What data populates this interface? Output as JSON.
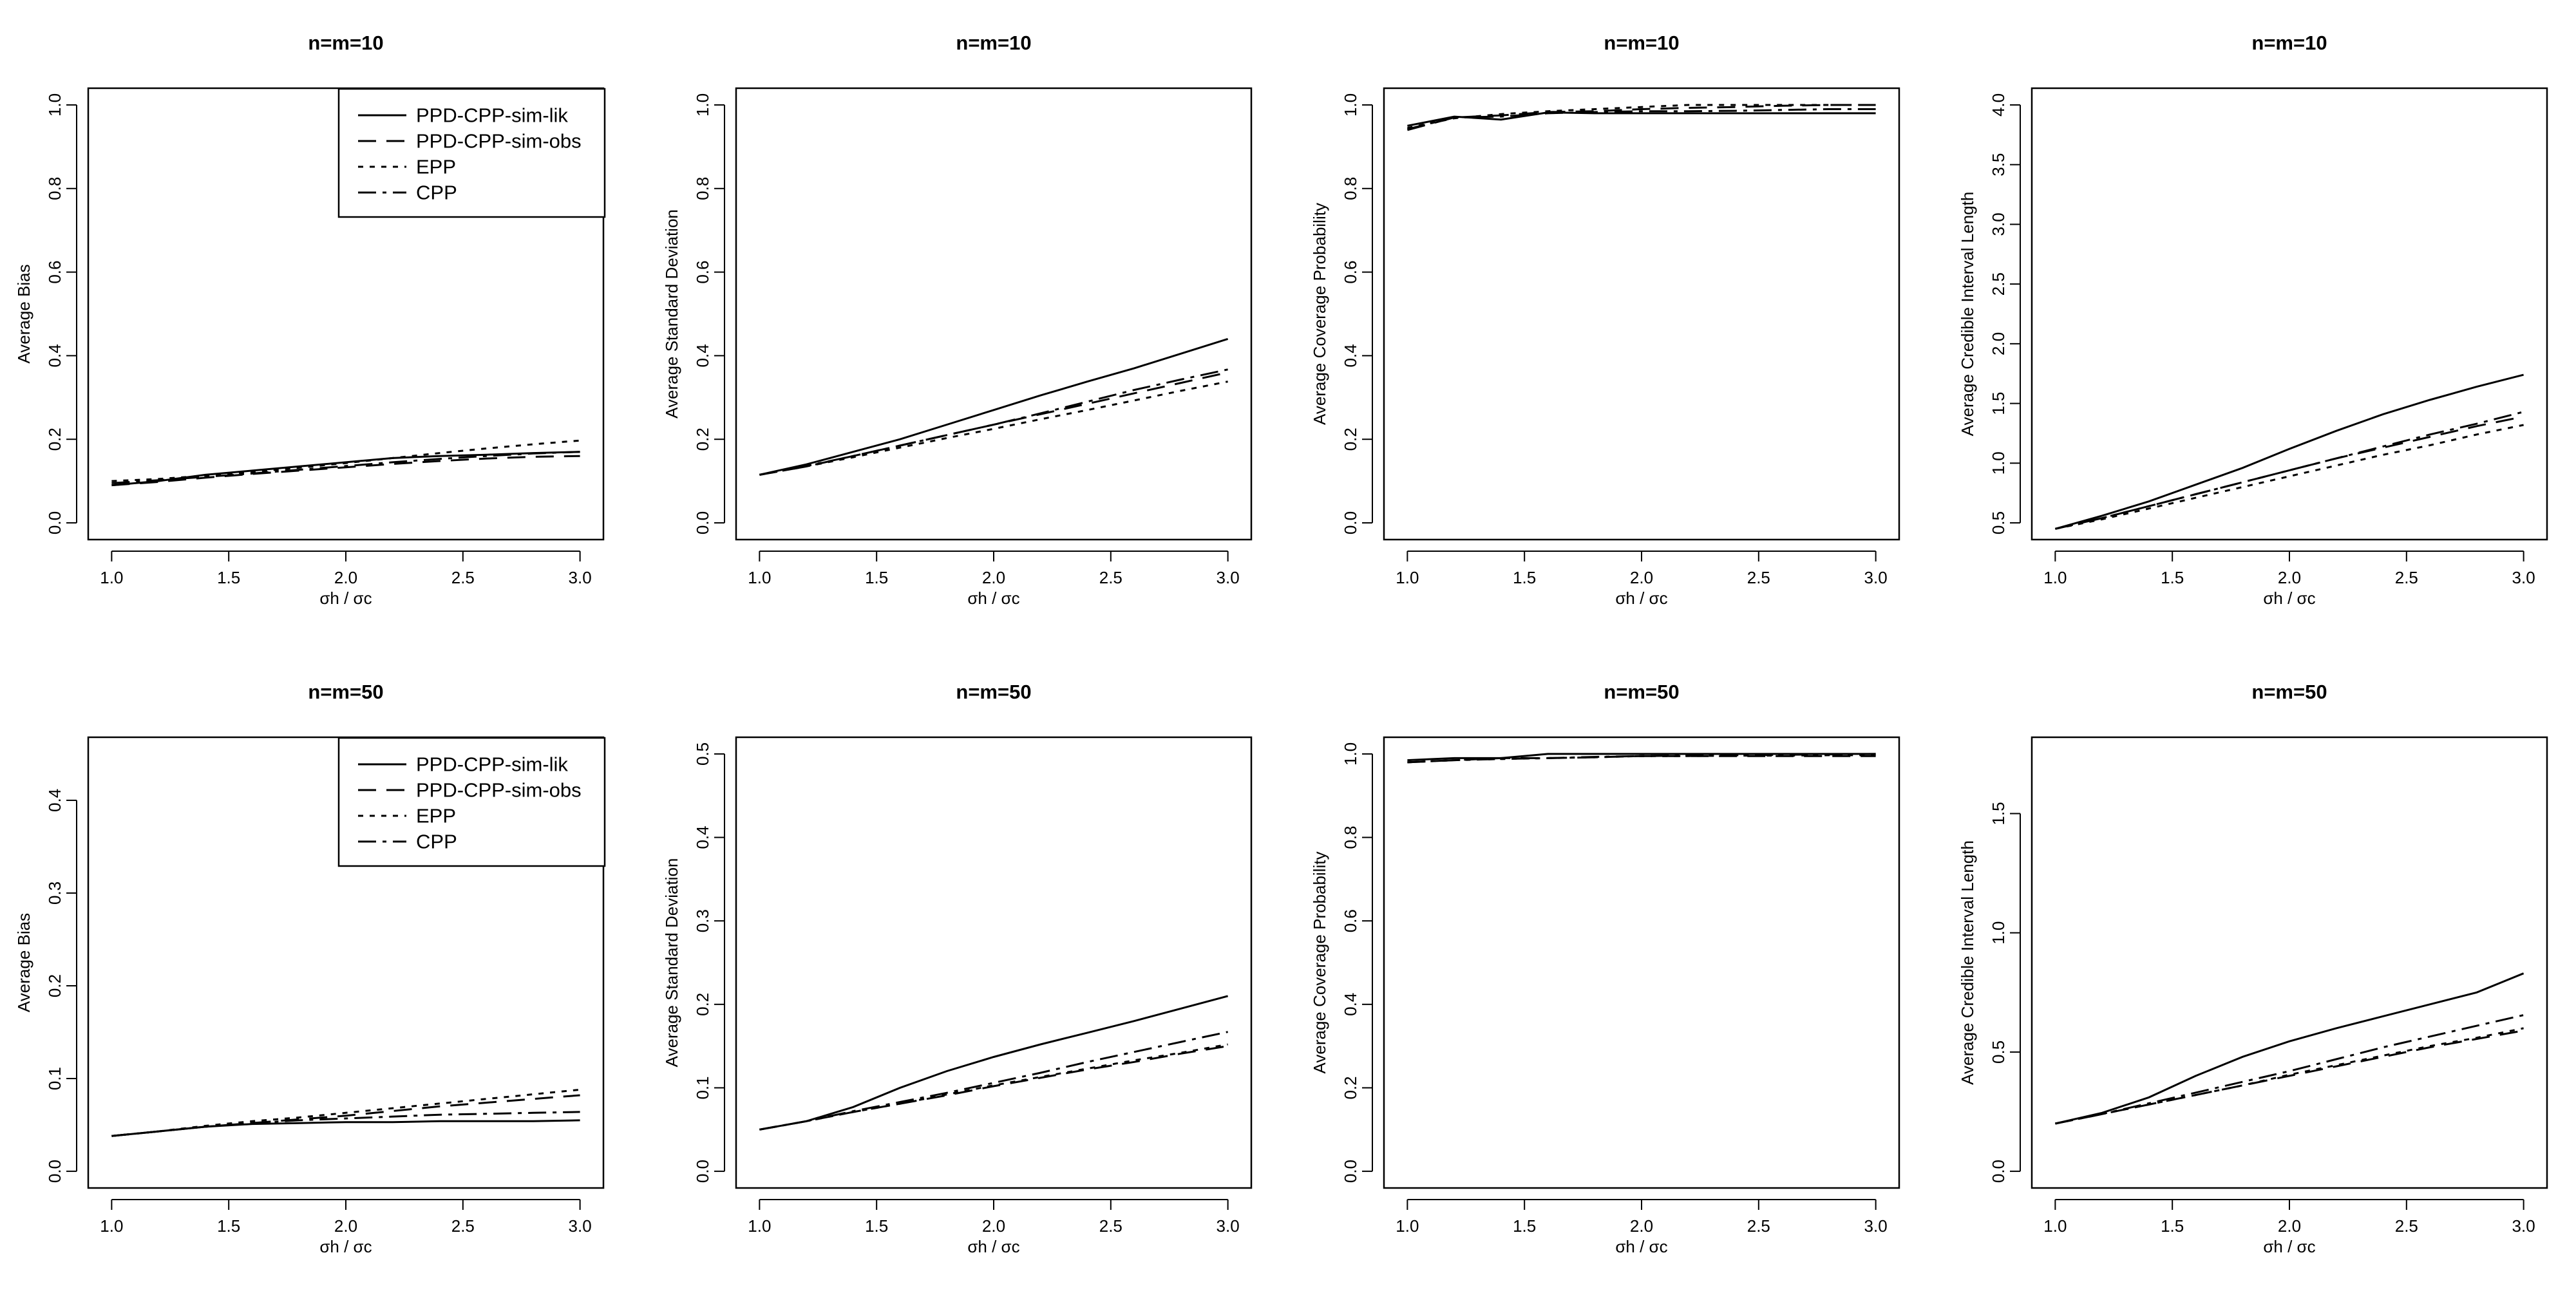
{
  "figure": {
    "x_axis_label": "σh / σc",
    "legend": [
      "PPD-CPP-sim-lik",
      "PPD-CPP-sim-obs",
      "EPP",
      "CPP"
    ]
  },
  "chart_data": [
    {
      "type": "line",
      "title": "n=m=10",
      "xlabel": "σh / σc",
      "ylabel": "Average Bias",
      "xlim": [
        1.0,
        3.0
      ],
      "ylim": [
        0.0,
        1.0
      ],
      "xticks": [
        "1.0",
        "1.5",
        "2.0",
        "2.5",
        "3.0"
      ],
      "yticks": [
        "0.0",
        "0.2",
        "0.4",
        "0.6",
        "0.8",
        "1.0"
      ],
      "legend_position": "top-right",
      "x": [
        1.0,
        1.2,
        1.4,
        1.6,
        1.8,
        2.0,
        2.2,
        2.4,
        2.6,
        2.8,
        3.0
      ],
      "series": [
        {
          "name": "PPD-CPP-sim-lik",
          "values": [
            0.09,
            0.1,
            0.115,
            0.125,
            0.135,
            0.145,
            0.155,
            0.16,
            0.163,
            0.167,
            0.17
          ]
        },
        {
          "name": "PPD-CPP-sim-obs",
          "values": [
            0.09,
            0.098,
            0.108,
            0.117,
            0.125,
            0.133,
            0.141,
            0.148,
            0.154,
            0.158,
            0.16
          ]
        },
        {
          "name": "EPP",
          "values": [
            0.1,
            0.105,
            0.113,
            0.122,
            0.132,
            0.143,
            0.155,
            0.167,
            0.178,
            0.188,
            0.197
          ]
        },
        {
          "name": "CPP",
          "values": [
            0.095,
            0.102,
            0.11,
            0.118,
            0.127,
            0.136,
            0.145,
            0.153,
            0.16,
            0.166,
            0.17
          ]
        }
      ]
    },
    {
      "type": "line",
      "title": "n=m=10",
      "xlabel": "σh / σc",
      "ylabel": "Average Standard Deviation",
      "xlim": [
        1.0,
        3.0
      ],
      "ylim": [
        0.0,
        1.0
      ],
      "xticks": [
        "1.0",
        "1.5",
        "2.0",
        "2.5",
        "3.0"
      ],
      "yticks": [
        "0.0",
        "0.2",
        "0.4",
        "0.6",
        "0.8",
        "1.0"
      ],
      "x": [
        1.0,
        1.2,
        1.4,
        1.6,
        1.8,
        2.0,
        2.2,
        2.4,
        2.6,
        2.8,
        3.0
      ],
      "series": [
        {
          "name": "PPD-CPP-sim-lik",
          "values": [
            0.115,
            0.14,
            0.17,
            0.2,
            0.235,
            0.27,
            0.305,
            0.338,
            0.37,
            0.405,
            0.44
          ]
        },
        {
          "name": "PPD-CPP-sim-obs",
          "values": [
            0.115,
            0.135,
            0.16,
            0.185,
            0.21,
            0.235,
            0.26,
            0.285,
            0.31,
            0.335,
            0.36
          ]
        },
        {
          "name": "EPP",
          "values": [
            0.115,
            0.135,
            0.157,
            0.18,
            0.203,
            0.225,
            0.248,
            0.27,
            0.293,
            0.316,
            0.338
          ]
        },
        {
          "name": "CPP",
          "values": [
            0.115,
            0.136,
            0.16,
            0.185,
            0.21,
            0.235,
            0.262,
            0.29,
            0.318,
            0.343,
            0.367
          ]
        }
      ]
    },
    {
      "type": "line",
      "title": "n=m=10",
      "xlabel": "σh / σc",
      "ylabel": "Average Coverage Probability",
      "xlim": [
        1.0,
        3.0
      ],
      "ylim": [
        0.0,
        1.0
      ],
      "xticks": [
        "1.0",
        "1.5",
        "2.0",
        "2.5",
        "3.0"
      ],
      "yticks": [
        "0.0",
        "0.2",
        "0.4",
        "0.6",
        "0.8",
        "1.0"
      ],
      "x": [
        1.0,
        1.2,
        1.4,
        1.6,
        1.8,
        2.0,
        2.2,
        2.4,
        2.6,
        2.8,
        3.0
      ],
      "series": [
        {
          "name": "PPD-CPP-sim-lik",
          "values": [
            0.95,
            0.972,
            0.965,
            0.982,
            0.98,
            0.98,
            0.98,
            0.98,
            0.98,
            0.98,
            0.98
          ]
        },
        {
          "name": "PPD-CPP-sim-obs",
          "values": [
            0.94,
            0.97,
            0.975,
            0.983,
            0.985,
            0.99,
            0.993,
            0.995,
            0.998,
            1.0,
            1.0
          ]
        },
        {
          "name": "EPP",
          "values": [
            0.945,
            0.968,
            0.978,
            0.985,
            0.99,
            0.995,
            1.0,
            1.0,
            1.0,
            1.0,
            1.0
          ]
        },
        {
          "name": "CPP",
          "values": [
            0.942,
            0.97,
            0.972,
            0.98,
            0.983,
            0.985,
            0.985,
            0.986,
            0.988,
            0.99,
            0.99
          ]
        }
      ]
    },
    {
      "type": "line",
      "title": "n=m=10",
      "xlabel": "σh / σc",
      "ylabel": "Average Credible Interval Length",
      "xlim": [
        1.0,
        3.0
      ],
      "ylim": [
        0.5,
        4.0
      ],
      "xticks": [
        "1.0",
        "1.5",
        "2.0",
        "2.5",
        "3.0"
      ],
      "yticks": [
        "0.5",
        "1.0",
        "1.5",
        "2.0",
        "2.5",
        "3.0",
        "3.5",
        "4.0"
      ],
      "x": [
        1.0,
        1.2,
        1.4,
        1.6,
        1.8,
        2.0,
        2.2,
        2.4,
        2.6,
        2.8,
        3.0
      ],
      "series": [
        {
          "name": "PPD-CPP-sim-lik",
          "values": [
            0.45,
            0.56,
            0.68,
            0.82,
            0.96,
            1.12,
            1.27,
            1.41,
            1.53,
            1.64,
            1.74
          ]
        },
        {
          "name": "PPD-CPP-sim-obs",
          "values": [
            0.45,
            0.54,
            0.64,
            0.74,
            0.84,
            0.94,
            1.04,
            1.13,
            1.22,
            1.31,
            1.39
          ]
        },
        {
          "name": "EPP",
          "values": [
            0.45,
            0.53,
            0.62,
            0.71,
            0.8,
            0.89,
            0.98,
            1.07,
            1.15,
            1.24,
            1.32
          ]
        },
        {
          "name": "CPP",
          "values": [
            0.45,
            0.54,
            0.64,
            0.74,
            0.84,
            0.94,
            1.04,
            1.14,
            1.24,
            1.33,
            1.43
          ]
        }
      ]
    },
    {
      "type": "line",
      "title": "n=m=50",
      "xlabel": "σh / σc",
      "ylabel": "Average Bias",
      "xlim": [
        1.0,
        3.0
      ],
      "ylim": [
        0.0,
        0.45
      ],
      "xticks": [
        "1.0",
        "1.5",
        "2.0",
        "2.5",
        "3.0"
      ],
      "yticks": [
        "0.0",
        "0.1",
        "0.2",
        "0.3",
        "0.4"
      ],
      "legend_position": "top-right",
      "x": [
        1.0,
        1.2,
        1.4,
        1.6,
        1.8,
        2.0,
        2.2,
        2.4,
        2.6,
        2.8,
        3.0
      ],
      "series": [
        {
          "name": "PPD-CPP-sim-lik",
          "values": [
            0.038,
            0.043,
            0.048,
            0.051,
            0.052,
            0.053,
            0.053,
            0.054,
            0.054,
            0.054,
            0.055
          ]
        },
        {
          "name": "PPD-CPP-sim-obs",
          "values": [
            0.038,
            0.043,
            0.048,
            0.052,
            0.056,
            0.06,
            0.065,
            0.07,
            0.074,
            0.078,
            0.082
          ]
        },
        {
          "name": "EPP",
          "values": [
            0.038,
            0.043,
            0.049,
            0.054,
            0.058,
            0.063,
            0.068,
            0.073,
            0.078,
            0.083,
            0.088
          ]
        },
        {
          "name": "CPP",
          "values": [
            0.038,
            0.043,
            0.048,
            0.052,
            0.055,
            0.057,
            0.059,
            0.061,
            0.062,
            0.063,
            0.064
          ]
        }
      ]
    },
    {
      "type": "line",
      "title": "n=m=50",
      "xlabel": "σh / σc",
      "ylabel": "Average Standard Deviation",
      "xlim": [
        1.0,
        3.0
      ],
      "ylim": [
        0.0,
        0.5
      ],
      "xticks": [
        "1.0",
        "1.5",
        "2.0",
        "2.5",
        "3.0"
      ],
      "yticks": [
        "0.0",
        "0.1",
        "0.2",
        "0.3",
        "0.4",
        "0.5"
      ],
      "x": [
        1.0,
        1.2,
        1.4,
        1.6,
        1.8,
        2.0,
        2.2,
        2.4,
        2.6,
        2.8,
        3.0
      ],
      "series": [
        {
          "name": "PPD-CPP-sim-lik",
          "values": [
            0.05,
            0.06,
            0.077,
            0.1,
            0.12,
            0.137,
            0.152,
            0.166,
            0.18,
            0.195,
            0.21
          ]
        },
        {
          "name": "PPD-CPP-sim-obs",
          "values": [
            0.05,
            0.06,
            0.071,
            0.081,
            0.091,
            0.102,
            0.112,
            0.122,
            0.131,
            0.141,
            0.15
          ]
        },
        {
          "name": "EPP",
          "values": [
            0.05,
            0.06,
            0.071,
            0.081,
            0.092,
            0.103,
            0.113,
            0.123,
            0.133,
            0.142,
            0.152
          ]
        },
        {
          "name": "CPP",
          "values": [
            0.05,
            0.06,
            0.072,
            0.083,
            0.094,
            0.106,
            0.118,
            0.131,
            0.143,
            0.155,
            0.167
          ]
        }
      ]
    },
    {
      "type": "line",
      "title": "n=m=50",
      "xlabel": "σh / σc",
      "ylabel": "Average Coverage Probability",
      "xlim": [
        1.0,
        3.0
      ],
      "ylim": [
        0.0,
        1.0
      ],
      "xticks": [
        "1.0",
        "1.5",
        "2.0",
        "2.5",
        "3.0"
      ],
      "yticks": [
        "0.0",
        "0.2",
        "0.4",
        "0.6",
        "0.8",
        "1.0"
      ],
      "x": [
        1.0,
        1.2,
        1.4,
        1.6,
        1.8,
        2.0,
        2.2,
        2.4,
        2.6,
        2.8,
        3.0
      ],
      "series": [
        {
          "name": "PPD-CPP-sim-lik",
          "values": [
            0.985,
            0.99,
            0.99,
            1.0,
            1.0,
            1.0,
            1.0,
            1.0,
            1.0,
            1.0,
            1.0
          ]
        },
        {
          "name": "PPD-CPP-sim-obs",
          "values": [
            0.98,
            0.985,
            0.99,
            0.99,
            0.992,
            0.995,
            0.995,
            0.995,
            0.995,
            0.995,
            0.995
          ]
        },
        {
          "name": "EPP",
          "values": [
            0.98,
            0.985,
            0.988,
            0.99,
            0.992,
            0.995,
            0.995,
            0.996,
            0.996,
            0.997,
            0.997
          ]
        },
        {
          "name": "CPP",
          "values": [
            0.98,
            0.985,
            0.988,
            0.99,
            0.993,
            0.995,
            0.996,
            0.997,
            0.998,
            0.999,
            1.0
          ]
        }
      ]
    },
    {
      "type": "line",
      "title": "n=m=50",
      "xlabel": "σh / σc",
      "ylabel": "Average Credible Interval Length",
      "xlim": [
        1.0,
        3.0
      ],
      "ylim": [
        0.0,
        1.75
      ],
      "xticks": [
        "1.0",
        "1.5",
        "2.0",
        "2.5",
        "3.0"
      ],
      "yticks": [
        "0.0",
        "0.5",
        "1.0",
        "1.5"
      ],
      "x": [
        1.0,
        1.2,
        1.4,
        1.6,
        1.8,
        2.0,
        2.2,
        2.4,
        2.6,
        2.8,
        3.0
      ],
      "series": [
        {
          "name": "PPD-CPP-sim-lik",
          "values": [
            0.2,
            0.245,
            0.31,
            0.4,
            0.48,
            0.545,
            0.6,
            0.65,
            0.7,
            0.75,
            0.83
          ]
        },
        {
          "name": "PPD-CPP-sim-obs",
          "values": [
            0.2,
            0.24,
            0.28,
            0.32,
            0.36,
            0.4,
            0.44,
            0.48,
            0.52,
            0.555,
            0.59
          ]
        },
        {
          "name": "EPP",
          "values": [
            0.2,
            0.24,
            0.28,
            0.32,
            0.36,
            0.405,
            0.445,
            0.485,
            0.525,
            0.56,
            0.6
          ]
        },
        {
          "name": "CPP",
          "values": [
            0.2,
            0.24,
            0.285,
            0.33,
            0.375,
            0.42,
            0.47,
            0.52,
            0.565,
            0.61,
            0.655
          ]
        }
      ]
    }
  ]
}
